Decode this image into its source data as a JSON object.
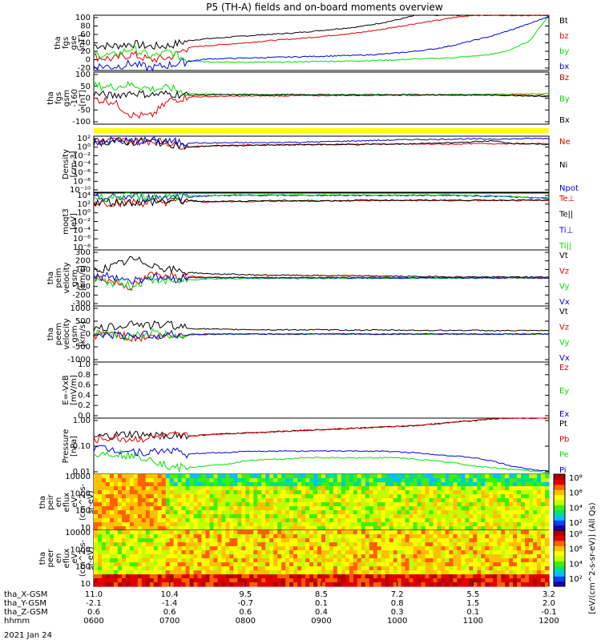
{
  "title": "P5 (TH-A) fields and on-board moments overview",
  "date_label": "2021 Jan 24",
  "colors": {
    "black": "#000000",
    "red": "#e00000",
    "green": "#00e000",
    "blue": "#0000e0",
    "yellow": "#ffff00"
  },
  "chart_data": [
    {
      "type": "line",
      "ylabel": [
        "tha",
        "fgs",
        "gse",
        "[nT]"
      ],
      "yticks": [
        "100",
        "80",
        "60",
        "40",
        "20",
        "0",
        "-20"
      ],
      "ylim": [
        -20,
        100
      ],
      "series": [
        {
          "name": "Bt",
          "color": "black",
          "values": [
            35,
            33,
            38,
            32,
            34,
            45,
            49,
            52,
            55,
            58,
            60,
            63,
            67,
            71,
            75,
            82,
            90,
            100,
            100,
            100,
            100,
            100,
            100,
            100,
            100
          ]
        },
        {
          "name": "bz",
          "color": "red",
          "values": [
            10,
            5,
            15,
            3,
            8,
            30,
            34,
            37,
            40,
            44,
            47,
            50,
            54,
            58,
            62,
            68,
            75,
            82,
            88,
            95,
            100,
            100,
            100,
            100,
            100
          ]
        },
        {
          "name": "by",
          "color": "green",
          "values": [
            15,
            12,
            28,
            10,
            20,
            2,
            -1,
            -2,
            -2,
            -2,
            -2,
            -1,
            0,
            0,
            1,
            2,
            3,
            5,
            6,
            8,
            11,
            15,
            25,
            45,
            100
          ]
        },
        {
          "name": "bx",
          "color": "blue",
          "values": [
            -10,
            -12,
            -5,
            -15,
            -8,
            0,
            5,
            6,
            7,
            8,
            9,
            10,
            11,
            12,
            13,
            15,
            18,
            22,
            27,
            35,
            45,
            55,
            68,
            82,
            98
          ]
        }
      ]
    },
    {
      "type": "line",
      "ylabel": [
        "tha",
        "fgs",
        "gsm",
        "-160",
        "[nT]"
      ],
      "yticks": [
        "100",
        "50",
        "0",
        "-50",
        "-100"
      ],
      "ylim": [
        -130,
        100
      ],
      "series": [
        {
          "name": "Bz",
          "color": "red",
          "values": [
            -20,
            -30,
            -90,
            -95,
            -25,
            -10,
            -8,
            -7,
            -6,
            -5,
            -5,
            -4,
            -4,
            -3,
            -3,
            -2,
            -2,
            -2,
            -1,
            -1,
            -1,
            -1,
            -1,
            -2,
            -3
          ]
        },
        {
          "name": "By",
          "color": "green",
          "values": [
            40,
            35,
            45,
            25,
            30,
            5,
            3,
            2,
            2,
            1,
            1,
            1,
            0,
            0,
            0,
            0,
            0,
            0,
            0,
            1,
            1,
            2,
            3,
            4,
            5
          ]
        },
        {
          "name": "Bx",
          "color": "black",
          "values": [
            5,
            -5,
            10,
            0,
            5,
            -2,
            -1,
            0,
            0,
            0,
            0,
            0,
            0,
            0,
            0,
            0,
            0,
            0,
            0,
            -1,
            -1,
            -2,
            -3,
            -5,
            -8
          ]
        }
      ]
    },
    {
      "type": "line",
      "ylabel": [
        "Density",
        "[cm-3]"
      ],
      "yticks": [
        "10²",
        "10⁰",
        "10⁻²",
        "10⁻⁴",
        "10⁻⁶",
        "10⁻⁸",
        "10⁻¹⁰"
      ],
      "ylim": [
        -10,
        2
      ],
      "series": [
        {
          "name": "Ne",
          "color": "red",
          "values": [
            0.8,
            1.0,
            0.9,
            1.0,
            0.6,
            -0.3,
            -0.1,
            0.0,
            0.1,
            0.1,
            0.2,
            0.2,
            0.2,
            0.3,
            0.3,
            0.3,
            0.3,
            0.3,
            0.3,
            0.3,
            0.4,
            0.4,
            0.4,
            0.4,
            0.4
          ]
        },
        {
          "name": "Ni",
          "color": "black",
          "values": [
            0.7,
            0.9,
            0.8,
            0.9,
            0.5,
            -0.4,
            -0.1,
            0.0,
            0.0,
            0.1,
            0.1,
            0.2,
            0.2,
            0.2,
            0.2,
            0.3,
            0.3,
            0.4,
            0.5,
            0.6,
            0.8,
            1.0,
            0.5,
            0.3,
            0.2
          ]
        },
        {
          "name": "Npot",
          "color": "blue",
          "values": [
            0.9,
            1.0,
            0.9,
            1.0,
            0.8,
            0.6,
            0.5,
            0.6,
            0.6,
            0.6,
            0.7,
            0.7,
            0.8,
            0.9,
            1.0,
            1.1,
            1.2,
            1.3,
            1.3,
            1.4,
            1.4,
            1.4,
            1.4,
            1.5,
            1.5
          ]
        }
      ]
    },
    {
      "type": "line",
      "ylabel": [
        "moqt3",
        "[eV]"
      ],
      "yticks": [
        "10⁴",
        "10²",
        "10⁰",
        "10⁻²",
        "10⁻⁴",
        "10⁻⁶",
        "10⁻⁸"
      ],
      "ylim": [
        -8,
        4
      ],
      "series": [
        {
          "name": "Te⊥",
          "color": "red",
          "values": [
            2.0,
            2.0,
            2.0,
            2.0,
            2.2,
            2.3,
            2.1,
            2.2,
            2.2,
            2.3,
            2.3,
            2.3,
            2.3,
            2.3,
            2.4,
            2.4,
            2.4,
            2.4,
            2.4,
            2.4,
            2.4,
            2.4,
            2.4,
            2.4,
            2.4
          ]
        },
        {
          "name": "Te||",
          "color": "black",
          "values": [
            2.1,
            2.1,
            2.1,
            2.1,
            2.3,
            2.4,
            2.2,
            2.3,
            2.3,
            2.4,
            2.4,
            2.4,
            2.4,
            2.4,
            2.5,
            2.5,
            2.5,
            2.5,
            2.5,
            2.5,
            2.5,
            2.5,
            2.5,
            2.5,
            2.5
          ]
        },
        {
          "name": "Ti⊥",
          "color": "blue",
          "values": [
            3.0,
            3.0,
            3.2,
            3.0,
            3.3,
            3.2,
            3.4,
            3.5,
            3.5,
            3.5,
            3.5,
            3.5,
            3.5,
            3.5,
            3.5,
            3.5,
            3.5,
            3.5,
            3.5,
            3.5,
            3.4,
            3.3,
            3.2,
            3.0,
            2.9
          ]
        },
        {
          "name": "Ti||",
          "color": "green",
          "values": [
            3.1,
            3.1,
            3.3,
            3.1,
            3.4,
            3.3,
            3.5,
            3.6,
            3.6,
            3.6,
            3.6,
            3.6,
            3.6,
            3.6,
            3.6,
            3.6,
            3.6,
            3.6,
            3.6,
            3.6,
            3.5,
            3.4,
            3.3,
            3.1,
            3.0
          ]
        }
      ]
    },
    {
      "type": "line",
      "ylabel": [
        "tha",
        "peim",
        "velocity",
        "gsm",
        "[km/s]"
      ],
      "yticks": [
        "300",
        "200",
        "100",
        "0",
        "-100",
        "-200",
        "-300"
      ],
      "ylim": [
        -300,
        300
      ],
      "series": [
        {
          "name": "Vt",
          "color": "black",
          "values": [
            80,
            120,
            200,
            150,
            90,
            60,
            45,
            40,
            35,
            30,
            30,
            28,
            25,
            25,
            22,
            20,
            18,
            15,
            15,
            12,
            12,
            10,
            10,
            10,
            10
          ]
        },
        {
          "name": "Vz",
          "color": "red",
          "values": [
            20,
            -40,
            -100,
            30,
            40,
            20,
            10,
            5,
            5,
            5,
            5,
            5,
            5,
            5,
            5,
            5,
            5,
            3,
            3,
            3,
            2,
            2,
            2,
            2,
            2
          ]
        },
        {
          "name": "Vy",
          "color": "green",
          "values": [
            -30,
            -50,
            -80,
            -20,
            -40,
            -20,
            -10,
            -8,
            -5,
            -5,
            -5,
            -5,
            -4,
            -4,
            -3,
            -3,
            -3,
            -2,
            -2,
            -2,
            -2,
            -1,
            -1,
            -1,
            -1
          ]
        },
        {
          "name": "Vx",
          "color": "blue",
          "values": [
            10,
            20,
            -30,
            10,
            -10,
            5,
            3,
            2,
            2,
            2,
            1,
            1,
            1,
            1,
            0,
            0,
            0,
            0,
            0,
            0,
            0,
            0,
            0,
            0,
            0
          ]
        }
      ]
    },
    {
      "type": "line",
      "ylabel": [
        "tha",
        "peem",
        "velocity",
        "gsm",
        "[km/s]"
      ],
      "yticks": [
        "1000",
        "500",
        "0",
        "-500",
        "-1000"
      ],
      "ylim": [
        -1000,
        1000
      ],
      "series": [
        {
          "name": "Vt",
          "color": "black",
          "values": [
            150,
            250,
            400,
            300,
            350,
            200,
            180,
            160,
            160,
            150,
            150,
            150,
            150,
            140,
            140,
            140,
            140,
            130,
            130,
            130,
            130,
            120,
            120,
            120,
            120
          ]
        },
        {
          "name": "Vz",
          "color": "red",
          "values": [
            -50,
            50,
            -150,
            -100,
            -80,
            -30,
            -10,
            0,
            10,
            0,
            -10,
            0,
            0,
            10,
            0,
            -10,
            0,
            0,
            0,
            0,
            0,
            0,
            0,
            0,
            0
          ]
        },
        {
          "name": "Vy",
          "color": "green",
          "values": [
            0,
            -50,
            -100,
            50,
            -50,
            -20,
            -10,
            0,
            0,
            0,
            0,
            0,
            0,
            0,
            0,
            0,
            0,
            0,
            0,
            0,
            0,
            0,
            0,
            0,
            0
          ]
        },
        {
          "name": "Vx",
          "color": "blue",
          "values": [
            -20,
            -50,
            -50,
            -30,
            -30,
            -10,
            -5,
            0,
            0,
            0,
            0,
            0,
            0,
            0,
            0,
            0,
            0,
            0,
            0,
            0,
            0,
            0,
            0,
            0,
            0
          ]
        }
      ]
    },
    {
      "type": "line",
      "ylabel": [
        "E=-VxB",
        "[mV/m]"
      ],
      "yticks": [
        "1.0",
        "0.8",
        "0.6",
        "0.4",
        "0.2",
        "0.0"
      ],
      "ylim": [
        0,
        1
      ],
      "series": [
        {
          "name": "Ez",
          "color": "red",
          "values": []
        },
        {
          "name": "Ey",
          "color": "green",
          "values": []
        },
        {
          "name": "Ex",
          "color": "blue",
          "values": []
        }
      ]
    },
    {
      "type": "line",
      "ylabel": [
        "Pressure",
        "[nPa]"
      ],
      "yticks": [
        "1.00",
        "0.10",
        "0.01"
      ],
      "ylim": [
        -2.4,
        1.0
      ],
      "series": [
        {
          "name": "Pt",
          "color": "black",
          "values": [
            -0.2,
            -0.1,
            0.0,
            -0.1,
            0.0,
            -0.1,
            0.0,
            0.05,
            0.1,
            0.15,
            0.2,
            0.25,
            0.3,
            0.35,
            0.4,
            0.45,
            0.5,
            0.55,
            0.65,
            0.75,
            0.85,
            0.95,
            1.0,
            1.0,
            1.0
          ]
        },
        {
          "name": "Pb",
          "color": "red",
          "values": [
            -0.3,
            -0.2,
            -0.3,
            -0.2,
            -0.1,
            -0.1,
            0.0,
            0.05,
            0.1,
            0.15,
            0.2,
            0.25,
            0.3,
            0.35,
            0.4,
            0.45,
            0.5,
            0.55,
            0.65,
            0.75,
            0.85,
            0.95,
            1.0,
            1.0,
            1.0
          ]
        },
        {
          "name": "Pe",
          "color": "green",
          "values": [
            -1.2,
            -1.1,
            -1.3,
            -1.4,
            -2.0,
            -2.0,
            -1.9,
            -1.8,
            -1.6,
            -1.5,
            -1.5,
            -1.4,
            -1.4,
            -1.4,
            -1.4,
            -1.4,
            -1.4,
            -1.5,
            -1.6,
            -1.7,
            -1.9,
            -2.0,
            -2.1,
            -2.2,
            -2.3
          ]
        },
        {
          "name": "Pi",
          "color": "blue",
          "values": [
            -0.8,
            -0.9,
            -1.0,
            -1.1,
            -0.9,
            -1.2,
            -1.1,
            -1.1,
            -1.0,
            -1.0,
            -1.0,
            -1.0,
            -1.0,
            -1.0,
            -1.0,
            -1.0,
            -1.05,
            -1.1,
            -1.2,
            -1.3,
            -1.4,
            -1.6,
            -1.9,
            -2.1,
            -2.2
          ]
        }
      ]
    },
    {
      "type": "heatmap",
      "ylabel": [
        "tha",
        "peir",
        "en",
        "eflux",
        "eV",
        "(cm^2-s-",
        "sr-eV)"
      ],
      "yticks": [
        "10000",
        "1000",
        "100",
        "10"
      ],
      "colorbar_ticks": [
        "10⁸",
        "10⁶",
        "10⁴",
        "10²"
      ],
      "colorbar_label": "[eV/(cm^2-s-sr-eV)] (All Qs)"
    },
    {
      "type": "heatmap",
      "ylabel": [
        "tha",
        "peer",
        "en",
        "eflux",
        "eV",
        "(cm^2-s-",
        "sr-eV)"
      ],
      "yticks": [
        "10000",
        "1000",
        "100",
        "10"
      ],
      "colorbar_ticks": [
        "10⁸",
        "10⁶",
        "10⁴",
        "10²"
      ],
      "colorbar_label": "[eV/(cm^2-s-sr-eV)] (All Qs)"
    }
  ],
  "x_axis": {
    "row_labels": [
      "tha_X-GSM",
      "tha_Y-GSM",
      "tha_Z-GSM",
      "hhmm"
    ],
    "columns": [
      [
        "11.0",
        "-2.1",
        "0.6",
        "0600"
      ],
      [
        "10.4",
        "-1.4",
        "0.6",
        "0700"
      ],
      [
        "9.5",
        "-0.7",
        "0.6",
        "0800"
      ],
      [
        "8.5",
        "0.1",
        "0.4",
        "0900"
      ],
      [
        "7.2",
        "0.8",
        "0.3",
        "1000"
      ],
      [
        "5.5",
        "1.5",
        "0.1",
        "1100"
      ],
      [
        "3.2",
        "2.0",
        "-0.1",
        "1200"
      ]
    ]
  }
}
